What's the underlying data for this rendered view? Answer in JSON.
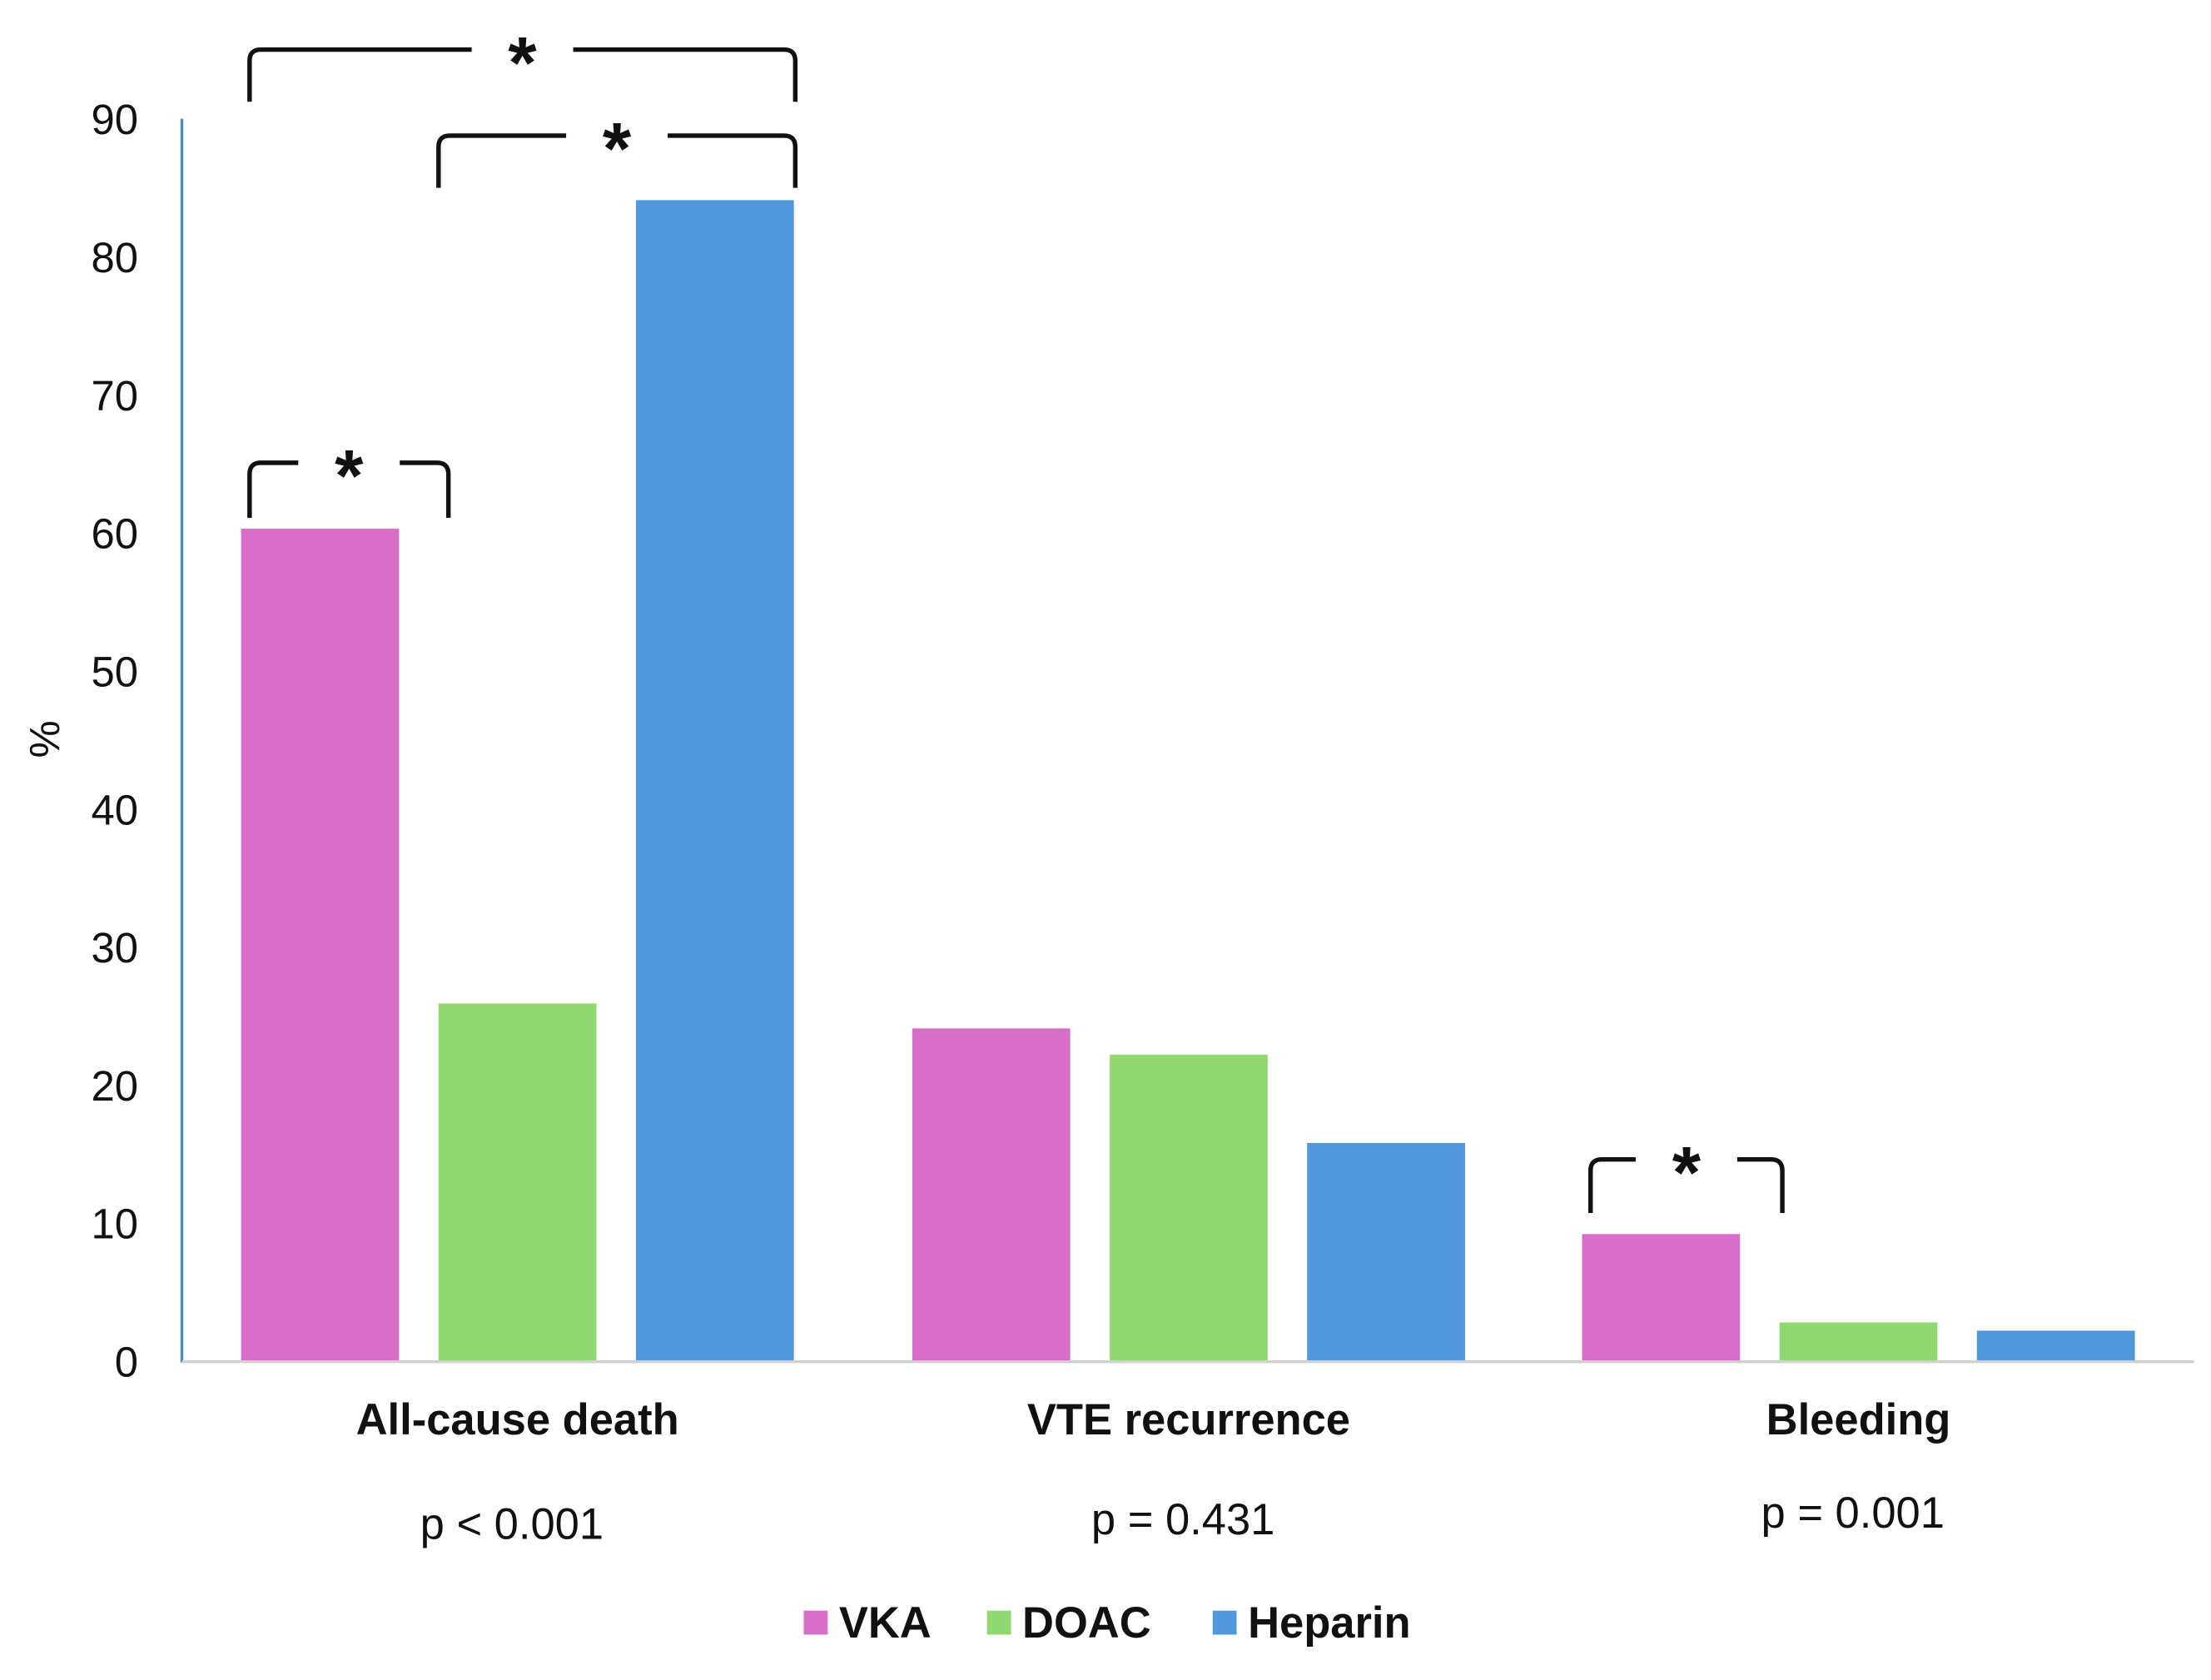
{
  "chart_data": {
    "type": "bar",
    "title": "",
    "xlabel": "",
    "ylabel": "%",
    "ylim": [
      0,
      90
    ],
    "yticks": [
      0,
      10,
      20,
      30,
      40,
      50,
      60,
      70,
      80,
      90
    ],
    "grid": false,
    "legend_position": "bottom-center",
    "categories": [
      "All-cause death",
      "VTE recurrence",
      "Bleeding"
    ],
    "p_values": [
      "p < 0.001",
      "p = 0.431",
      "p = 0.001"
    ],
    "series": [
      {
        "name": "VKA",
        "color": "#d76fc9",
        "values": [
          60.3,
          24.1,
          9.2
        ]
      },
      {
        "name": "DOAC",
        "color": "#8fd872",
        "values": [
          25.9,
          22.2,
          2.8
        ]
      },
      {
        "name": "Heparin",
        "color": "#5097db",
        "values": [
          84.1,
          15.8,
          2.2
        ]
      }
    ],
    "significance_brackets": [
      {
        "category": 0,
        "from": "VKA",
        "to": "Heparin",
        "label": "*"
      },
      {
        "category": 0,
        "from": "DOAC",
        "to": "Heparin",
        "label": "*"
      },
      {
        "category": 0,
        "from": "VKA",
        "to": "DOAC",
        "label": "*"
      },
      {
        "category": 2,
        "from": "VKA",
        "to": "DOAC",
        "label": "*"
      }
    ]
  }
}
